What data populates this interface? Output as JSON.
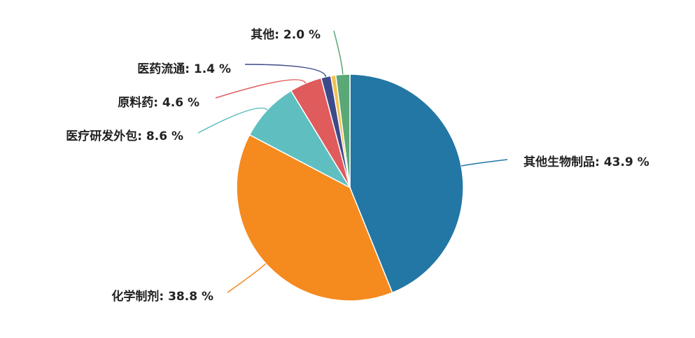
{
  "chart_data": {
    "type": "pie",
    "values": [
      43.9,
      38.8,
      8.6,
      4.6,
      1.4,
      0.7,
      2.0
    ],
    "value_labels": [
      "其他生物制品: 43.9 %",
      "化学制剂: 38.8 %",
      "医疗研发外包: 8.6 %",
      "原料药: 4.6 %",
      "医药流通: 1.4 %",
      null,
      "其他: 2.0 %"
    ],
    "colors": [
      "#2277a4",
      "#f58a1f",
      "#5fbfc0",
      "#e05b5c",
      "#3d4a8a",
      "#f0c050",
      "#5aa876"
    ]
  }
}
